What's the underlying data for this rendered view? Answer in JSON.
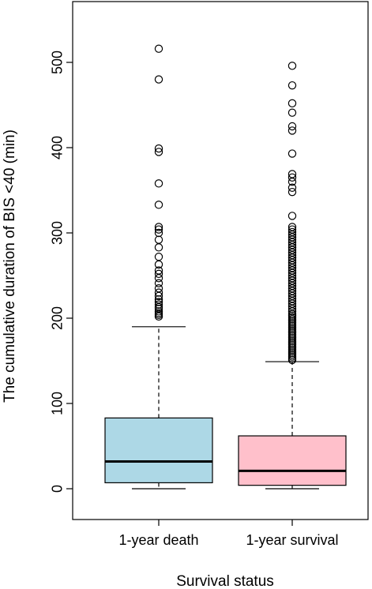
{
  "chart_data": {
    "type": "boxplot",
    "title": "",
    "xlabel": "Survival status",
    "ylabel": "The cumulative duration of BIS <40 (min)",
    "ylim": [
      0,
      550
    ],
    "yticks": [
      0,
      100,
      200,
      300,
      400,
      500
    ],
    "grid": false,
    "categories": [
      "1-year death",
      "1-year survival"
    ],
    "colors": [
      "#add8e6",
      "#ffc0cb"
    ],
    "boxes": [
      {
        "category": "1-year death",
        "min": 0,
        "q1": 7,
        "median": 32,
        "q3": 83,
        "whisker_high": 190,
        "outliers": [
          202,
          204,
          206,
          208,
          211,
          213,
          216,
          219,
          222,
          226,
          230,
          235,
          241,
          247,
          252,
          256,
          263,
          272,
          283,
          292,
          300,
          304,
          307,
          333,
          358,
          395,
          399,
          480,
          516
        ]
      },
      {
        "category": "1-year survival",
        "min": 0,
        "q1": 4,
        "median": 21,
        "q3": 62,
        "whisker_high": 149,
        "outliers": [
          151,
          153,
          155,
          157,
          159,
          161,
          163,
          165,
          167,
          169,
          171,
          173,
          175,
          177,
          179,
          181,
          183,
          185,
          187,
          189,
          191,
          193,
          195,
          197,
          199,
          201,
          203,
          205,
          208,
          211,
          214,
          217,
          220,
          223,
          226,
          229,
          232,
          235,
          238,
          241,
          244,
          247,
          250,
          253,
          256,
          259,
          262,
          265,
          268,
          271,
          274,
          277,
          280,
          283,
          286,
          289,
          292,
          295,
          298,
          301,
          304,
          307,
          320,
          348,
          353,
          360,
          365,
          369,
          393,
          420,
          425,
          441,
          452,
          473,
          496
        ]
      }
    ]
  }
}
